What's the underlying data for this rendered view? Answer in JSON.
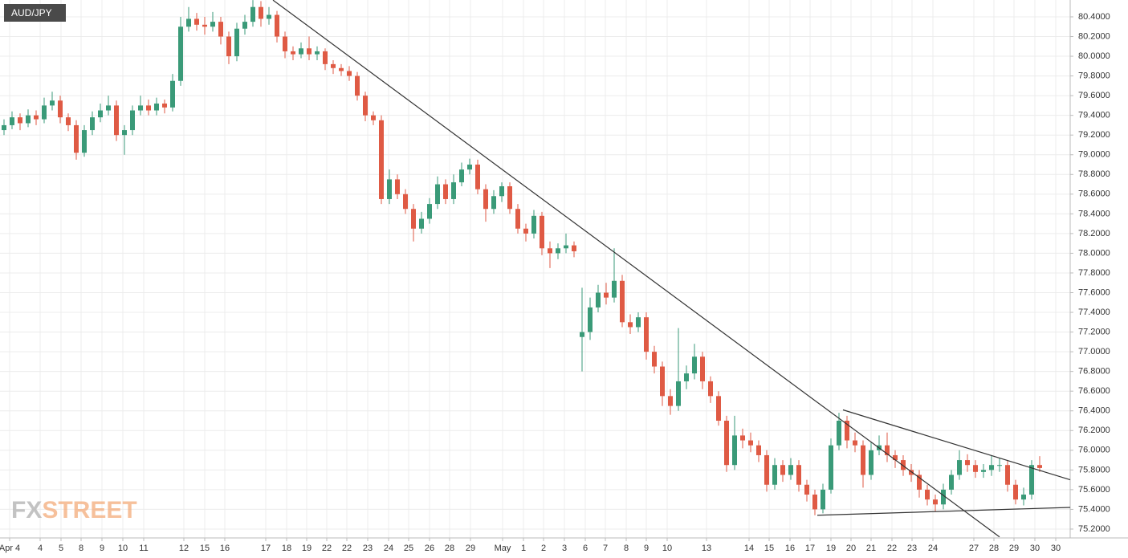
{
  "chart_data": {
    "type": "candlestick",
    "title": "AUD/JPY",
    "watermark": [
      "FX",
      "STREET"
    ],
    "up_color": "#3a9a78",
    "down_color": "#df5a44",
    "grid": true,
    "xlim": [
      -0.5,
      132.8
    ],
    "ylim": [
      75.11,
      80.571
    ],
    "xticks": [
      {
        "value": 0.7,
        "label": "Apr 4"
      },
      {
        "value": 4.5,
        "label": "4"
      },
      {
        "value": 7.1,
        "label": "5"
      },
      {
        "value": 9.6,
        "label": "8"
      },
      {
        "value": 12.2,
        "label": "9"
      },
      {
        "value": 14.8,
        "label": "10"
      },
      {
        "value": 17.4,
        "label": "11"
      },
      {
        "value": 22.4,
        "label": "12"
      },
      {
        "value": 25,
        "label": "15"
      },
      {
        "value": 27.5,
        "label": "16"
      },
      {
        "value": 32.6,
        "label": "17"
      },
      {
        "value": 35.2,
        "label": "18"
      },
      {
        "value": 37.7,
        "label": "19"
      },
      {
        "value": 40.2,
        "label": "22"
      },
      {
        "value": 42.7,
        "label": "22"
      },
      {
        "value": 45.3,
        "label": "23"
      },
      {
        "value": 47.9,
        "label": "24"
      },
      {
        "value": 50.4,
        "label": "25"
      },
      {
        "value": 53,
        "label": "26"
      },
      {
        "value": 55.5,
        "label": "28"
      },
      {
        "value": 58.1,
        "label": "29"
      },
      {
        "value": 62.1,
        "label": "May"
      },
      {
        "value": 64.7,
        "label": "1"
      },
      {
        "value": 67.2,
        "label": "2"
      },
      {
        "value": 69.8,
        "label": "3"
      },
      {
        "value": 72.4,
        "label": "6"
      },
      {
        "value": 74.9,
        "label": "7"
      },
      {
        "value": 77.5,
        "label": "8"
      },
      {
        "value": 80,
        "label": "9"
      },
      {
        "value": 82.6,
        "label": "10"
      },
      {
        "value": 87.5,
        "label": "13"
      },
      {
        "value": 92.8,
        "label": "14"
      },
      {
        "value": 95.3,
        "label": "15"
      },
      {
        "value": 97.9,
        "label": "16"
      },
      {
        "value": 100.4,
        "label": "17"
      },
      {
        "value": 103,
        "label": "19"
      },
      {
        "value": 105.5,
        "label": "20"
      },
      {
        "value": 108,
        "label": "21"
      },
      {
        "value": 110.6,
        "label": "22"
      },
      {
        "value": 113.1,
        "label": "23"
      },
      {
        "value": 115.7,
        "label": "24"
      },
      {
        "value": 120.8,
        "label": "27"
      },
      {
        "value": 123.3,
        "label": "28"
      },
      {
        "value": 125.8,
        "label": "29"
      },
      {
        "value": 128.4,
        "label": "30"
      },
      {
        "value": 131,
        "label": "30"
      }
    ],
    "yticks": [
      {
        "value": 75.2,
        "label": "75.2000"
      },
      {
        "value": 75.4,
        "label": "75.4000"
      },
      {
        "value": 75.6,
        "label": "75.6000"
      },
      {
        "value": 75.8,
        "label": "75.8000"
      },
      {
        "value": 76.0,
        "label": "76.0000"
      },
      {
        "value": 76.2,
        "label": "76.2000"
      },
      {
        "value": 76.4,
        "label": "76.4000"
      },
      {
        "value": 76.6,
        "label": "76.6000"
      },
      {
        "value": 76.8,
        "label": "76.8000"
      },
      {
        "value": 77.0,
        "label": "77.0000"
      },
      {
        "value": 77.2,
        "label": "77.2000"
      },
      {
        "value": 77.4,
        "label": "77.4000"
      },
      {
        "value": 77.6,
        "label": "77.6000"
      },
      {
        "value": 77.8,
        "label": "77.8000"
      },
      {
        "value": 78.0,
        "label": "78.0000"
      },
      {
        "value": 78.2,
        "label": "78.2000"
      },
      {
        "value": 78.4,
        "label": "78.4000"
      },
      {
        "value": 78.6,
        "label": "78.6000"
      },
      {
        "value": 78.8,
        "label": "78.8000"
      },
      {
        "value": 79.0,
        "label": "79.0000"
      },
      {
        "value": 79.2,
        "label": "79.2000"
      },
      {
        "value": 79.4,
        "label": "79.4000"
      },
      {
        "value": 79.6,
        "label": "79.6000"
      },
      {
        "value": 79.8,
        "label": "79.8000"
      },
      {
        "value": 80.0,
        "label": "80.0000"
      },
      {
        "value": 80.2,
        "label": "80.2000"
      },
      {
        "value": 80.4,
        "label": "80.4000"
      }
    ],
    "trendlines": [
      {
        "x": [
          33.5,
          124
        ],
        "y": [
          80.57,
          75.12
        ]
      },
      {
        "x": [
          104.5,
          132.8
        ],
        "y": [
          76.41,
          75.7
        ]
      },
      {
        "x": [
          101.3,
          132.8
        ],
        "y": [
          75.34,
          75.42
        ]
      }
    ],
    "candles": [
      [
        79.25,
        79.36,
        79.2,
        79.3
      ],
      [
        79.3,
        79.44,
        79.26,
        79.38
      ],
      [
        79.38,
        79.42,
        79.25,
        79.32
      ],
      [
        79.32,
        79.46,
        79.28,
        79.4
      ],
      [
        79.4,
        79.45,
        79.3,
        79.36
      ],
      [
        79.36,
        79.58,
        79.32,
        79.5
      ],
      [
        79.5,
        79.64,
        79.45,
        79.55
      ],
      [
        79.55,
        79.6,
        79.32,
        79.38
      ],
      [
        79.38,
        79.42,
        79.24,
        79.3
      ],
      [
        79.3,
        79.35,
        78.95,
        79.02
      ],
      [
        79.02,
        79.3,
        78.98,
        79.25
      ],
      [
        79.25,
        79.44,
        79.2,
        79.38
      ],
      [
        79.38,
        79.52,
        79.33,
        79.45
      ],
      [
        79.45,
        79.6,
        79.4,
        79.5
      ],
      [
        79.5,
        79.55,
        79.14,
        79.2
      ],
      [
        79.2,
        79.3,
        79.0,
        79.25
      ],
      [
        79.25,
        79.5,
        79.2,
        79.45
      ],
      [
        79.45,
        79.6,
        79.4,
        79.5
      ],
      [
        79.5,
        79.56,
        79.4,
        79.45
      ],
      [
        79.45,
        79.58,
        79.4,
        79.52
      ],
      [
        79.52,
        79.56,
        79.42,
        79.48
      ],
      [
        79.48,
        79.82,
        79.44,
        79.75
      ],
      [
        79.75,
        80.4,
        79.7,
        80.3
      ],
      [
        80.3,
        80.5,
        80.25,
        80.38
      ],
      [
        80.38,
        80.44,
        80.26,
        80.32
      ],
      [
        80.32,
        80.4,
        80.22,
        80.3
      ],
      [
        80.3,
        80.45,
        80.25,
        80.35
      ],
      [
        80.35,
        80.4,
        80.12,
        80.2
      ],
      [
        80.2,
        80.25,
        79.92,
        80.0
      ],
      [
        80.0,
        80.34,
        79.95,
        80.28
      ],
      [
        80.28,
        80.42,
        80.22,
        80.35
      ],
      [
        80.35,
        80.57,
        80.3,
        80.5
      ],
      [
        80.5,
        80.56,
        80.3,
        80.38
      ],
      [
        80.38,
        80.5,
        80.32,
        80.42
      ],
      [
        80.42,
        80.46,
        80.14,
        80.2
      ],
      [
        80.2,
        80.25,
        79.98,
        80.05
      ],
      [
        80.05,
        80.1,
        79.96,
        80.02
      ],
      [
        80.02,
        80.14,
        79.98,
        80.08
      ],
      [
        80.08,
        80.2,
        79.96,
        80.02
      ],
      [
        80.02,
        80.1,
        79.96,
        80.05
      ],
      [
        80.05,
        80.08,
        79.86,
        79.92
      ],
      [
        79.92,
        79.96,
        79.82,
        79.88
      ],
      [
        79.88,
        79.92,
        79.8,
        79.85
      ],
      [
        79.85,
        79.9,
        79.75,
        79.8
      ],
      [
        79.8,
        79.84,
        79.55,
        79.6
      ],
      [
        79.6,
        79.64,
        79.34,
        79.4
      ],
      [
        79.4,
        79.44,
        79.3,
        79.35
      ],
      [
        79.35,
        79.4,
        78.5,
        78.55
      ],
      [
        78.55,
        78.85,
        78.5,
        78.75
      ],
      [
        78.75,
        78.8,
        78.55,
        78.6
      ],
      [
        78.6,
        78.65,
        78.4,
        78.45
      ],
      [
        78.45,
        78.5,
        78.12,
        78.25
      ],
      [
        78.25,
        78.42,
        78.2,
        78.35
      ],
      [
        78.35,
        78.56,
        78.3,
        78.5
      ],
      [
        78.5,
        78.78,
        78.45,
        78.7
      ],
      [
        78.7,
        78.75,
        78.5,
        78.55
      ],
      [
        78.55,
        78.8,
        78.5,
        78.72
      ],
      [
        78.72,
        78.92,
        78.68,
        78.85
      ],
      [
        78.85,
        78.96,
        78.8,
        78.9
      ],
      [
        78.9,
        78.95,
        78.6,
        78.65
      ],
      [
        78.65,
        78.7,
        78.32,
        78.45
      ],
      [
        78.45,
        78.64,
        78.4,
        78.58
      ],
      [
        78.58,
        78.72,
        78.52,
        78.68
      ],
      [
        78.68,
        78.72,
        78.4,
        78.45
      ],
      [
        78.45,
        78.5,
        78.2,
        78.25
      ],
      [
        78.25,
        78.3,
        78.12,
        78.2
      ],
      [
        78.2,
        78.44,
        78.15,
        78.38
      ],
      [
        78.38,
        78.42,
        77.98,
        78.05
      ],
      [
        78.05,
        78.12,
        77.85,
        78.0
      ],
      [
        78.0,
        78.1,
        77.94,
        78.05
      ],
      [
        78.05,
        78.2,
        78.0,
        78.08
      ],
      [
        78.08,
        78.12,
        77.96,
        78.02
      ],
      [
        77.15,
        77.65,
        76.8,
        77.2
      ],
      [
        77.2,
        77.55,
        77.12,
        77.45
      ],
      [
        77.45,
        77.68,
        77.4,
        77.6
      ],
      [
        77.6,
        77.7,
        77.48,
        77.55
      ],
      [
        77.55,
        78.05,
        77.5,
        77.72
      ],
      [
        77.72,
        77.78,
        77.25,
        77.3
      ],
      [
        77.3,
        77.38,
        77.18,
        77.25
      ],
      [
        77.25,
        77.4,
        77.2,
        77.35
      ],
      [
        77.35,
        77.4,
        76.92,
        77.0
      ],
      [
        77.0,
        77.06,
        76.78,
        76.85
      ],
      [
        76.85,
        76.9,
        76.45,
        76.55
      ],
      [
        76.55,
        76.62,
        76.36,
        76.45
      ],
      [
        76.45,
        77.24,
        76.4,
        76.7
      ],
      [
        76.7,
        76.86,
        76.62,
        76.78
      ],
      [
        76.78,
        77.08,
        76.72,
        76.95
      ],
      [
        76.95,
        77.0,
        76.62,
        76.7
      ],
      [
        76.7,
        76.75,
        76.48,
        76.55
      ],
      [
        76.55,
        76.6,
        76.25,
        76.3
      ],
      [
        76.3,
        76.35,
        75.78,
        75.85
      ],
      [
        75.85,
        76.35,
        75.8,
        76.15
      ],
      [
        76.15,
        76.22,
        76.02,
        76.1
      ],
      [
        76.1,
        76.18,
        75.98,
        76.05
      ],
      [
        76.05,
        76.1,
        75.88,
        75.95
      ],
      [
        75.95,
        76.0,
        75.58,
        75.65
      ],
      [
        75.65,
        75.92,
        75.6,
        75.85
      ],
      [
        75.85,
        75.9,
        75.68,
        75.75
      ],
      [
        75.75,
        75.92,
        75.7,
        75.85
      ],
      [
        75.85,
        75.9,
        75.58,
        75.65
      ],
      [
        75.65,
        75.7,
        75.48,
        75.55
      ],
      [
        75.55,
        75.6,
        75.34,
        75.4
      ],
      [
        75.4,
        75.66,
        75.36,
        75.6
      ],
      [
        75.6,
        76.12,
        75.56,
        76.05
      ],
      [
        76.05,
        76.38,
        76.0,
        76.3
      ],
      [
        76.3,
        76.35,
        76.02,
        76.1
      ],
      [
        76.1,
        76.18,
        75.98,
        76.05
      ],
      [
        76.05,
        76.1,
        75.62,
        75.75
      ],
      [
        75.75,
        76.08,
        75.7,
        76.0
      ],
      [
        76.0,
        76.15,
        75.95,
        76.05
      ],
      [
        76.05,
        76.18,
        75.88,
        75.95
      ],
      [
        75.95,
        76.0,
        75.82,
        75.9
      ],
      [
        75.9,
        75.95,
        75.74,
        75.8
      ],
      [
        75.8,
        75.86,
        75.68,
        75.75
      ],
      [
        75.75,
        75.8,
        75.52,
        75.6
      ],
      [
        75.6,
        75.65,
        75.44,
        75.5
      ],
      [
        75.5,
        75.55,
        75.38,
        75.45
      ],
      [
        75.45,
        75.66,
        75.4,
        75.6
      ],
      [
        75.6,
        75.8,
        75.55,
        75.75
      ],
      [
        75.75,
        76.0,
        75.7,
        75.9
      ],
      [
        75.9,
        75.96,
        75.78,
        75.85
      ],
      [
        75.85,
        75.9,
        75.72,
        75.78
      ],
      [
        75.78,
        75.86,
        75.72,
        75.8
      ],
      [
        75.8,
        75.95,
        75.74,
        75.85
      ],
      [
        75.85,
        75.92,
        75.78,
        75.85
      ],
      [
        75.85,
        75.9,
        75.58,
        75.65
      ],
      [
        75.65,
        75.7,
        75.45,
        75.5
      ],
      [
        75.5,
        75.62,
        75.44,
        75.55
      ],
      [
        75.55,
        75.9,
        75.5,
        75.85
      ],
      [
        75.85,
        75.94,
        75.78,
        75.82
      ]
    ]
  }
}
